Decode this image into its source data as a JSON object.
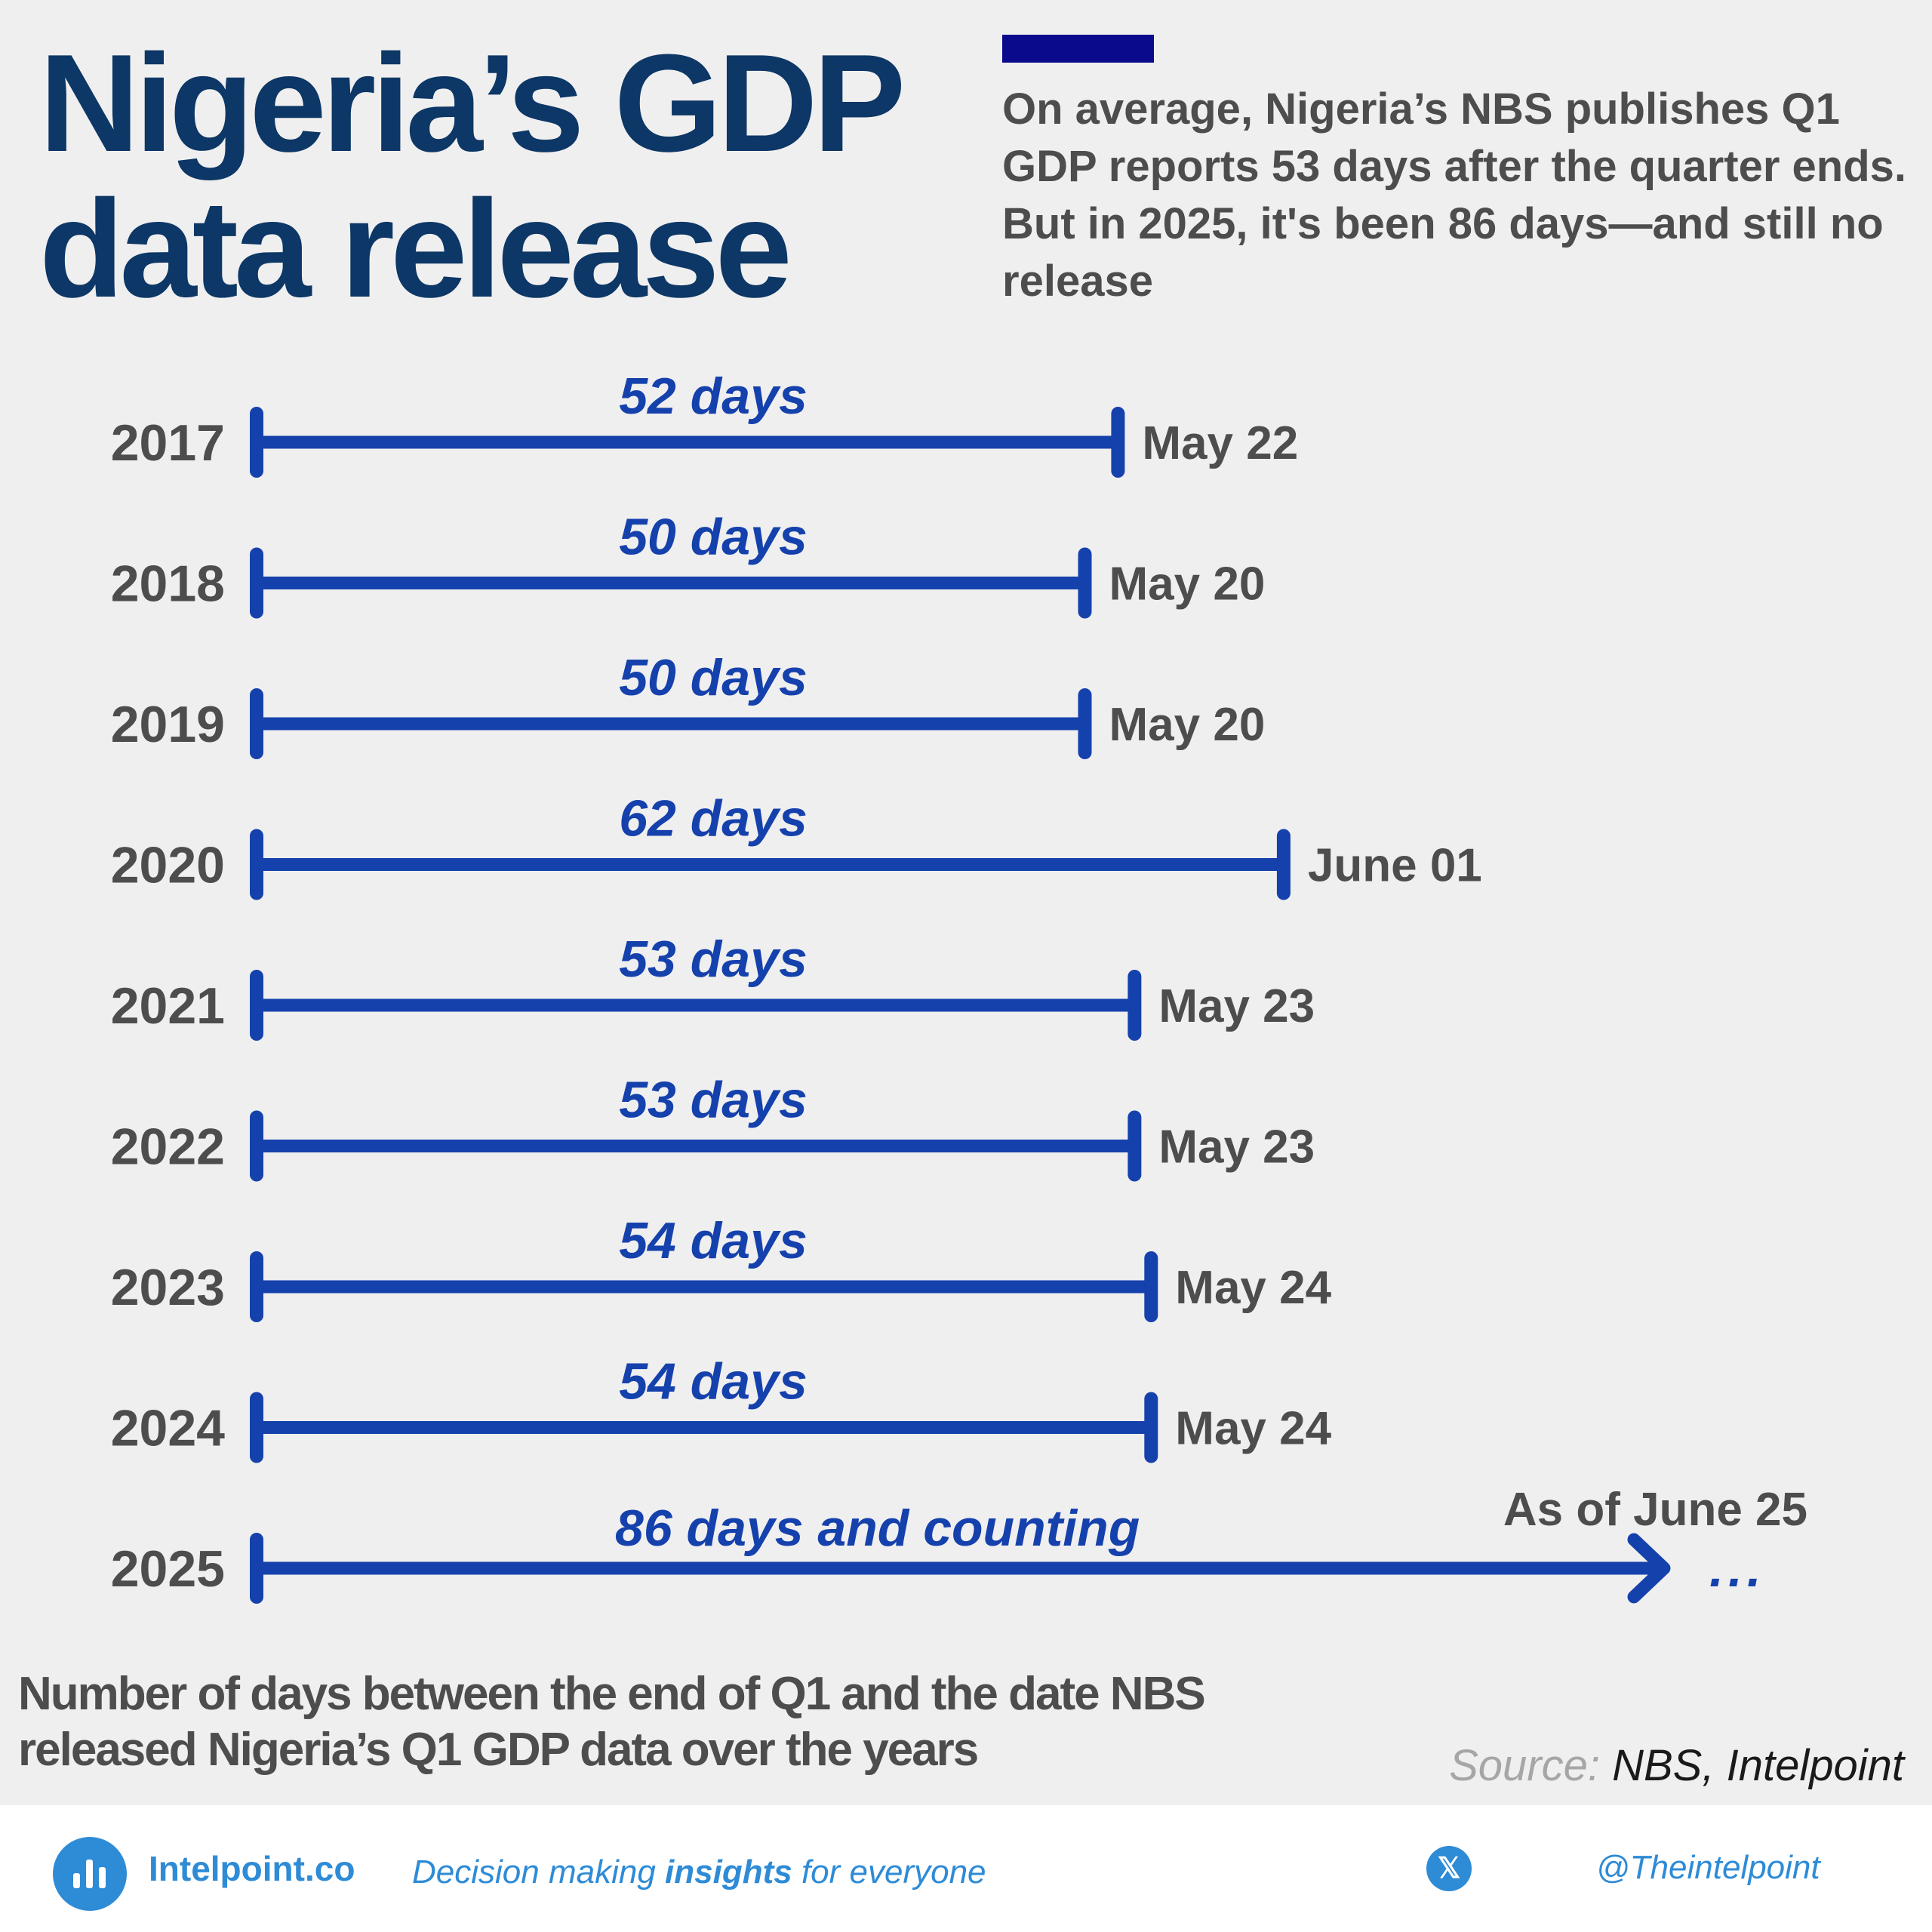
{
  "title_line1": "Nigeria’s GDP",
  "title_line2": "data release",
  "subtitle": "On average, Nigeria’s NBS publishes Q1 GDP reports 53 days after the quarter ends. But in 2025, it's been 86 days—and still no release",
  "accent_color": "#0a0a8c",
  "bar_color": "#1541ad",
  "chart_data": {
    "type": "bar",
    "orientation": "horizontal",
    "title": "Nigeria’s GDP data release",
    "note": "Number of days between the end of Q1 and the date NBS released Nigeria’s Q1 GDP data over the years",
    "categories": [
      "2017",
      "2018",
      "2019",
      "2020",
      "2021",
      "2022",
      "2023",
      "2024",
      "2025"
    ],
    "series": [
      {
        "values": [
          52,
          50,
          50,
          62,
          53,
          53,
          54,
          54,
          86
        ]
      }
    ],
    "day_labels": [
      "52 days",
      "50 days",
      "50 days",
      "62 days",
      "53 days",
      "53 days",
      "54 days",
      "54 days",
      "86 days and counting"
    ],
    "release_dates": [
      "May 22",
      "May 20",
      "May 20",
      "June 01",
      "May 23",
      "May 23",
      "May 24",
      "May 24",
      "As of June 25"
    ],
    "ongoing": [
      false,
      false,
      false,
      false,
      false,
      false,
      false,
      false,
      true
    ],
    "continuation_marker": "..."
  },
  "source_prefix": "Source:",
  "source_text": "NBS, Intelpoint",
  "footer": {
    "brand": "Intelpoint.co",
    "tagline_pre": "Decision making ",
    "tagline_bold": "insights",
    "tagline_post": " for everyone",
    "handle": "@Theintelpoint",
    "x_icon": "x-logo-icon",
    "logo_icon": "bar-chart-logo-icon",
    "color": "#2e8bd6"
  }
}
